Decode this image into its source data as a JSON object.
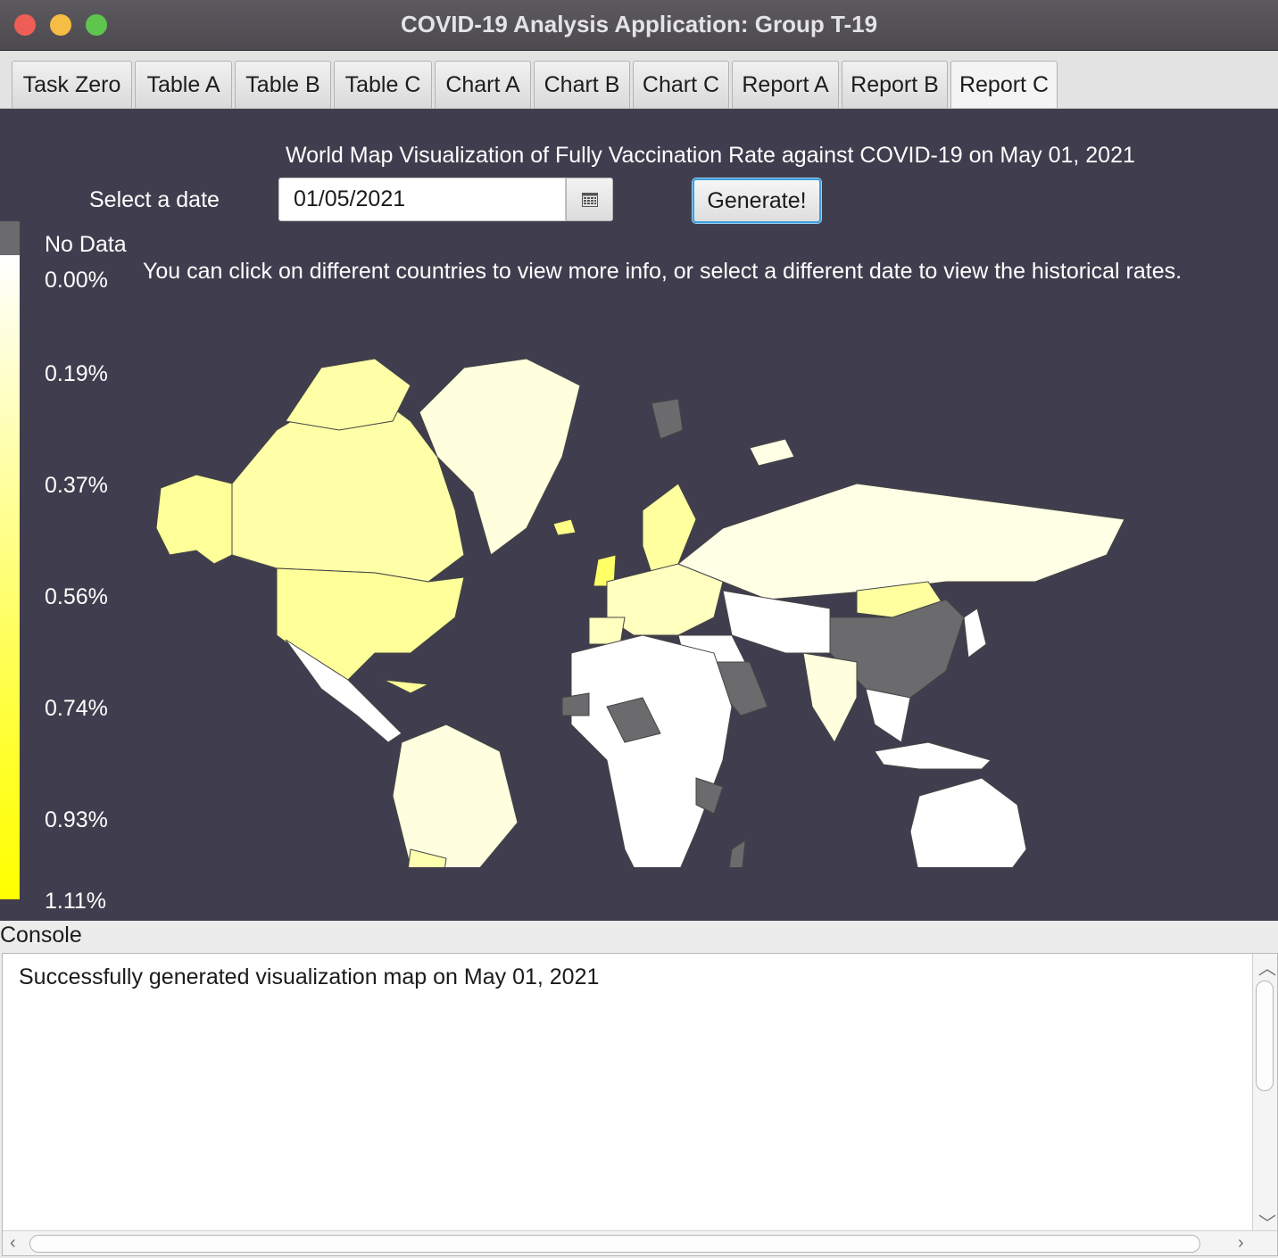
{
  "window": {
    "title": "COVID-19 Analysis Application: Group T-19"
  },
  "tabs": [
    {
      "label": "Task Zero"
    },
    {
      "label": "Table A"
    },
    {
      "label": "Table B"
    },
    {
      "label": "Table C"
    },
    {
      "label": "Chart A"
    },
    {
      "label": "Chart B"
    },
    {
      "label": "Chart C"
    },
    {
      "label": "Report A"
    },
    {
      "label": "Report B"
    },
    {
      "label": "Report C",
      "active": true
    }
  ],
  "report": {
    "heading": "World Map Visualization of Fully Vaccination Rate against COVID-19 on May 01, 2021",
    "date_label": "Select a date",
    "date_value": "01/05/2021",
    "generate_label": "Generate!",
    "hint": "You can click on different countries to view more info, or select a different date to view the historical rates."
  },
  "legend": {
    "no_data": "No Data",
    "stops": [
      "0.00%",
      "0.19%",
      "0.37%",
      "0.56%",
      "0.74%",
      "0.93%",
      "1.11%"
    ],
    "colors": {
      "no_data": "#6b6a6d",
      "low": "#ffffff",
      "high": "#ffff00"
    }
  },
  "console": {
    "label": "Console",
    "text": "Successfully generated visualization map on May 01, 2021"
  },
  "icons": {
    "calendar": "calendar-icon"
  },
  "colors": {
    "panel_bg": "#403e4e",
    "focus": "#3aa0dd"
  }
}
